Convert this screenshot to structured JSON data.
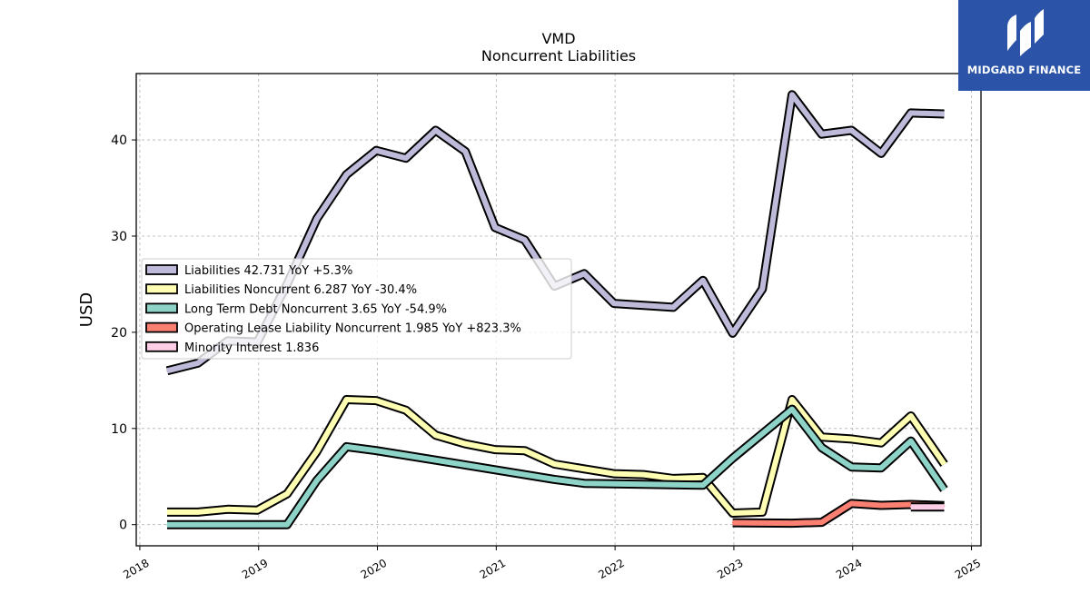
{
  "brand": {
    "name": "MIDGARD FINANCE",
    "icon": "midgard-logo-icon",
    "bg_color": "#2b54a8"
  },
  "chart_data": {
    "type": "line",
    "title": "VMD",
    "subtitle": "Noncurrent  Liabilities",
    "xlabel": "",
    "ylabel": "USD",
    "xlim": [
      2017.97,
      2025.08
    ],
    "ylim": [
      -2.2,
      46.9
    ],
    "grid": true,
    "legend_position": "center-left",
    "x_ticks": [
      {
        "label": "2018",
        "value": 2018
      },
      {
        "label": "2019",
        "value": 2019
      },
      {
        "label": "2020",
        "value": 2020
      },
      {
        "label": "2021",
        "value": 2021
      },
      {
        "label": "2022",
        "value": 2022
      },
      {
        "label": "2023",
        "value": 2023
      },
      {
        "label": "2024",
        "value": 2024
      },
      {
        "label": "2025",
        "value": 2025
      }
    ],
    "y_ticks": [
      {
        "label": "0",
        "value": 0
      },
      {
        "label": "10",
        "value": 10
      },
      {
        "label": "20",
        "value": 20
      },
      {
        "label": "30",
        "value": 30
      },
      {
        "label": "40",
        "value": 40
      }
    ],
    "series": [
      {
        "name": "Liabilities",
        "legend": "Liabilities  42.731 YoY +5.3%",
        "color": "#bebada",
        "points": [
          [
            2018.23,
            16.0
          ],
          [
            2018.49,
            16.8
          ],
          [
            2018.74,
            19.1
          ],
          [
            2018.99,
            19.0
          ],
          [
            2019.24,
            25.0
          ],
          [
            2019.49,
            31.8
          ],
          [
            2019.74,
            36.4
          ],
          [
            2019.99,
            38.9
          ],
          [
            2020.24,
            38.1
          ],
          [
            2020.49,
            41.0
          ],
          [
            2020.74,
            38.8
          ],
          [
            2020.99,
            30.9
          ],
          [
            2021.24,
            29.6
          ],
          [
            2021.49,
            24.8
          ],
          [
            2021.74,
            26.1
          ],
          [
            2021.99,
            23.0
          ],
          [
            2022.24,
            22.8
          ],
          [
            2022.49,
            22.6
          ],
          [
            2022.74,
            25.4
          ],
          [
            2022.99,
            19.9
          ],
          [
            2023.24,
            24.5
          ],
          [
            2023.49,
            44.7
          ],
          [
            2023.74,
            40.6
          ],
          [
            2023.99,
            41.0
          ],
          [
            2024.24,
            38.6
          ],
          [
            2024.49,
            42.8
          ],
          [
            2024.77,
            42.7
          ]
        ]
      },
      {
        "name": "Liabilities Noncurrent",
        "legend": "Liabilities Noncurrent  6.287 YoY -30.4%",
        "color": "#ffffb3",
        "points": [
          [
            2018.23,
            1.3
          ],
          [
            2018.49,
            1.3
          ],
          [
            2018.74,
            1.6
          ],
          [
            2018.99,
            1.5
          ],
          [
            2019.24,
            3.2
          ],
          [
            2019.49,
            7.6
          ],
          [
            2019.74,
            13.0
          ],
          [
            2019.99,
            12.9
          ],
          [
            2020.24,
            11.9
          ],
          [
            2020.49,
            9.3
          ],
          [
            2020.74,
            8.4
          ],
          [
            2020.99,
            7.8
          ],
          [
            2021.24,
            7.7
          ],
          [
            2021.49,
            6.3
          ],
          [
            2021.74,
            5.8
          ],
          [
            2021.99,
            5.3
          ],
          [
            2022.24,
            5.2
          ],
          [
            2022.49,
            4.8
          ],
          [
            2022.74,
            4.9
          ],
          [
            2022.99,
            1.2
          ],
          [
            2023.24,
            1.3
          ],
          [
            2023.49,
            13.0
          ],
          [
            2023.74,
            9.1
          ],
          [
            2023.99,
            8.9
          ],
          [
            2024.24,
            8.5
          ],
          [
            2024.49,
            11.3
          ],
          [
            2024.77,
            6.287
          ]
        ]
      },
      {
        "name": "Long Term Debt Noncurrent",
        "legend": "Long Term Debt Noncurrent  3.65 YoY -54.9%",
        "color": "#8dd3c7",
        "points": [
          [
            2018.23,
            0.0
          ],
          [
            2018.49,
            0.0
          ],
          [
            2018.74,
            0.0
          ],
          [
            2018.99,
            0.0
          ],
          [
            2019.24,
            0.0
          ],
          [
            2019.49,
            4.6
          ],
          [
            2019.74,
            8.1
          ],
          [
            2019.99,
            7.7
          ],
          [
            2020.49,
            6.7
          ],
          [
            2020.99,
            5.7
          ],
          [
            2021.49,
            4.7
          ],
          [
            2021.74,
            4.3
          ],
          [
            2022.24,
            4.2
          ],
          [
            2022.74,
            4.1
          ],
          [
            2022.99,
            6.9
          ],
          [
            2023.49,
            12.0
          ],
          [
            2023.74,
            8.0
          ],
          [
            2023.99,
            6.0
          ],
          [
            2024.24,
            5.9
          ],
          [
            2024.49,
            8.7
          ],
          [
            2024.77,
            3.65
          ]
        ]
      },
      {
        "name": "Operating Lease Liability Noncurrent",
        "legend": "Operating Lease Liability Noncurrent  1.985 YoY +823.3%",
        "color": "#fb8072",
        "points": [
          [
            2022.99,
            0.2
          ],
          [
            2023.49,
            0.15
          ],
          [
            2023.74,
            0.25
          ],
          [
            2023.99,
            2.2
          ],
          [
            2024.24,
            2.0
          ],
          [
            2024.49,
            2.1
          ],
          [
            2024.77,
            1.985
          ]
        ]
      },
      {
        "name": "Minority Interest",
        "legend": "Minority Interest  1.836",
        "color": "#fccde5",
        "points": [
          [
            2024.49,
            1.836
          ],
          [
            2024.77,
            1.836
          ]
        ]
      }
    ]
  }
}
